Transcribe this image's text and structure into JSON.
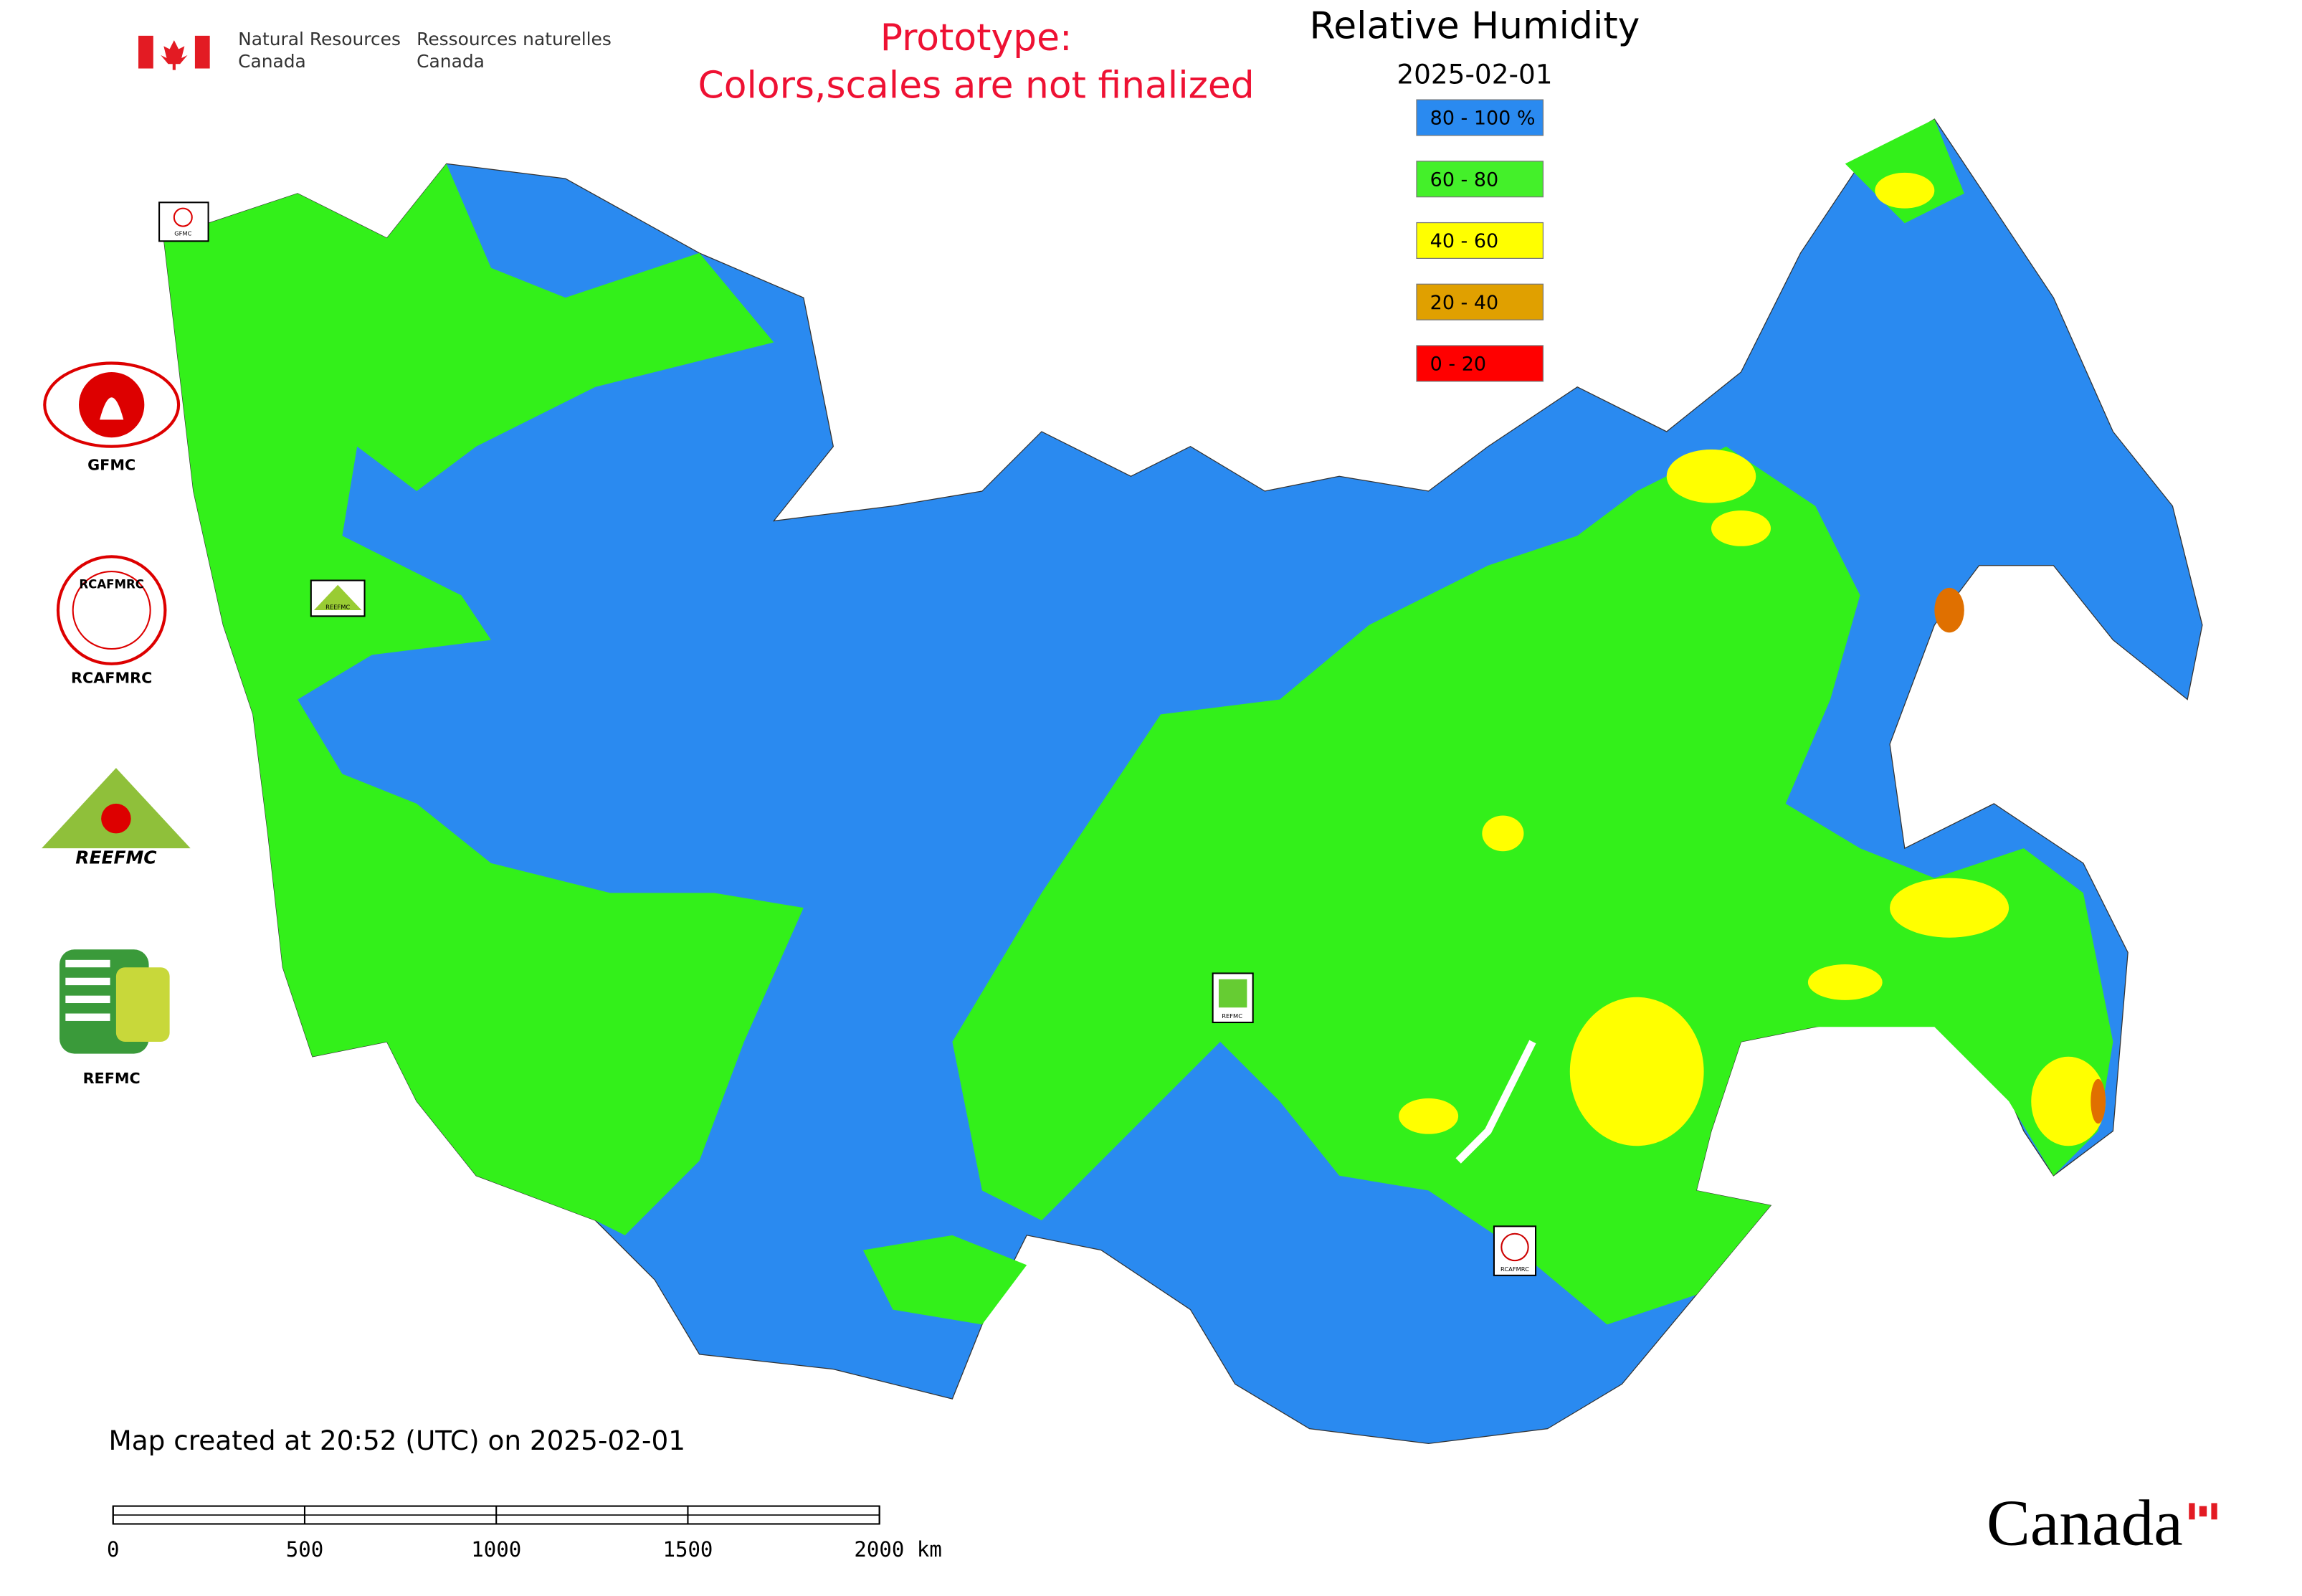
{
  "header": {
    "english": [
      "Natural Resources",
      "Canada"
    ],
    "french": [
      "Ressources naturelles",
      "Canada"
    ]
  },
  "notice": [
    "Prototype:",
    "Colors,scales are not finalized"
  ],
  "title": "Relative Humidity",
  "date": "2025-02-01",
  "legend": [
    {
      "label": "80 - 100 %",
      "color": "#2a8af0"
    },
    {
      "label": "60 - 80",
      "color": "#44f02a"
    },
    {
      "label": "40 - 60",
      "color": "#ffff00"
    },
    {
      "label": "20 - 40",
      "color": "#e0a000"
    },
    {
      "label": "0 - 20",
      "color": "#ff0000"
    }
  ],
  "logos": [
    {
      "label": "GFMC"
    },
    {
      "label": "RCAFMRC",
      "text": "RCAFMRC"
    },
    {
      "text": "REEFMC"
    },
    {
      "label": "REFMC"
    }
  ],
  "map_markers": [
    "GFMC",
    "REEFMC",
    "REFMC",
    "RCAFMRC"
  ],
  "footer": "Map created at 20:52 (UTC) on 2025-02-01",
  "scale_bar": {
    "ticks": [
      0,
      500,
      1000,
      1500,
      {
        "value": 2000,
        "label": "2000 km"
      }
    ]
  },
  "wordmark": "Canada"
}
